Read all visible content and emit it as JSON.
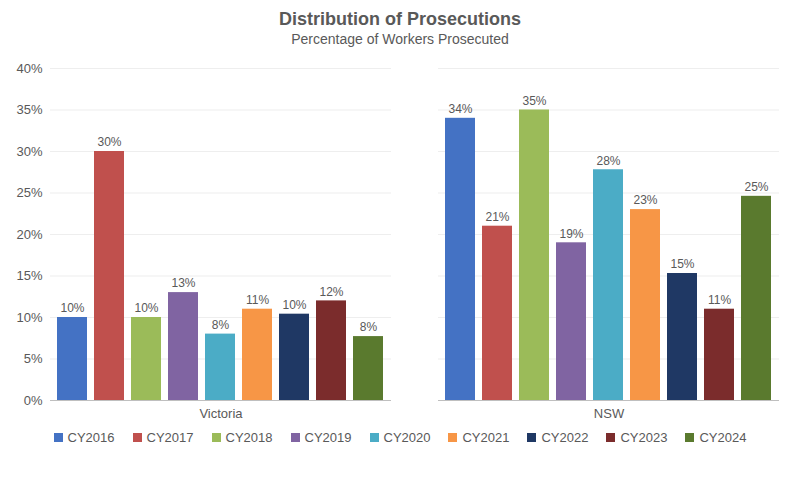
{
  "chart_data": {
    "type": "bar",
    "title": "Distribution of Prosecutions",
    "subtitle": "Percentage of Workers Prosecuted",
    "categories": [
      "Victoria",
      "NSW"
    ],
    "series": [
      {
        "name": "CY2016",
        "color": "#4472c4",
        "values": [
          10,
          34
        ],
        "value_labels": [
          "10%",
          "34%"
        ]
      },
      {
        "name": "CY2017",
        "color": "#c0504d",
        "values": [
          30,
          21
        ],
        "value_labels": [
          "30%",
          "21%"
        ]
      },
      {
        "name": "CY2018",
        "color": "#9bbb59",
        "values": [
          10,
          35
        ],
        "value_labels": [
          "10%",
          "35%"
        ]
      },
      {
        "name": "CY2019",
        "color": "#8064a2",
        "values": [
          13,
          19
        ],
        "value_labels": [
          "13%",
          "19%"
        ]
      },
      {
        "name": "CY2020",
        "color": "#4bacc6",
        "values": [
          8,
          27.8
        ],
        "value_labels": [
          "8%",
          "28%"
        ]
      },
      {
        "name": "CY2021",
        "color": "#f79646",
        "values": [
          11,
          23
        ],
        "value_labels": [
          "11%",
          "23%"
        ]
      },
      {
        "name": "CY2022",
        "color": "#1f3864",
        "values": [
          10.4,
          15.3
        ],
        "value_labels": [
          "10%",
          "15%"
        ]
      },
      {
        "name": "CY2023",
        "color": "#7b2c2c",
        "values": [
          12,
          11
        ],
        "value_labels": [
          "12%",
          "11%"
        ]
      },
      {
        "name": "CY2024",
        "color": "#5a7a2e",
        "values": [
          7.7,
          24.6
        ],
        "value_labels": [
          "8%",
          "25%"
        ]
      }
    ],
    "ylim": [
      0,
      40
    ],
    "yticks": [
      {
        "value": 0,
        "label": "0%"
      },
      {
        "value": 5,
        "label": "5%"
      },
      {
        "value": 10,
        "label": "10%"
      },
      {
        "value": 15,
        "label": "15%"
      },
      {
        "value": 20,
        "label": "20%"
      },
      {
        "value": 25,
        "label": "25%"
      },
      {
        "value": 30,
        "label": "30%"
      },
      {
        "value": 35,
        "label": "35%"
      },
      {
        "value": 40,
        "label": "40%"
      }
    ],
    "grid": true,
    "data_labels": true,
    "legend": "bottom"
  }
}
